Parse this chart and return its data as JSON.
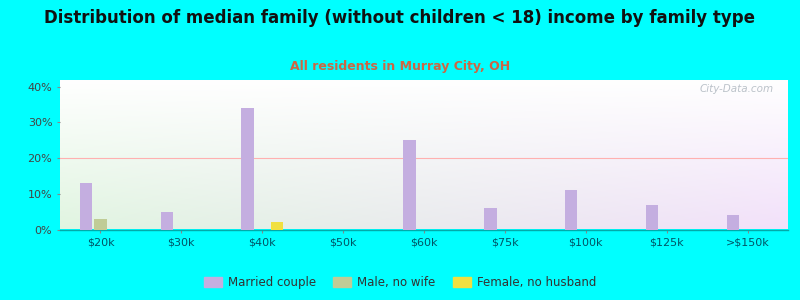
{
  "title": "Distribution of median family (without children < 18) income by family type",
  "subtitle": "All residents in Murray City, OH",
  "background_color": "#00FFFF",
  "categories": [
    "$20k",
    "$30k",
    "$40k",
    "$50k",
    "$60k",
    "$75k",
    "$100k",
    "$125k",
    ">$150k"
  ],
  "married_couple": [
    13,
    5,
    34,
    0,
    25,
    6,
    11,
    7,
    4
  ],
  "male_no_wife": [
    3,
    0,
    0,
    0,
    0,
    0,
    0,
    0,
    0
  ],
  "female_no_husband": [
    0,
    0,
    2,
    0,
    0,
    0,
    0,
    0,
    0
  ],
  "married_color": "#c4aee0",
  "male_color": "#c0cc96",
  "female_color": "#f0e040",
  "ylim": [
    0,
    42
  ],
  "yticks": [
    0,
    10,
    20,
    30,
    40
  ],
  "ytick_labels": [
    "0%",
    "10%",
    "20%",
    "30%",
    "40%"
  ],
  "title_fontsize": 12,
  "subtitle_fontsize": 9,
  "watermark": "City-Data.com"
}
